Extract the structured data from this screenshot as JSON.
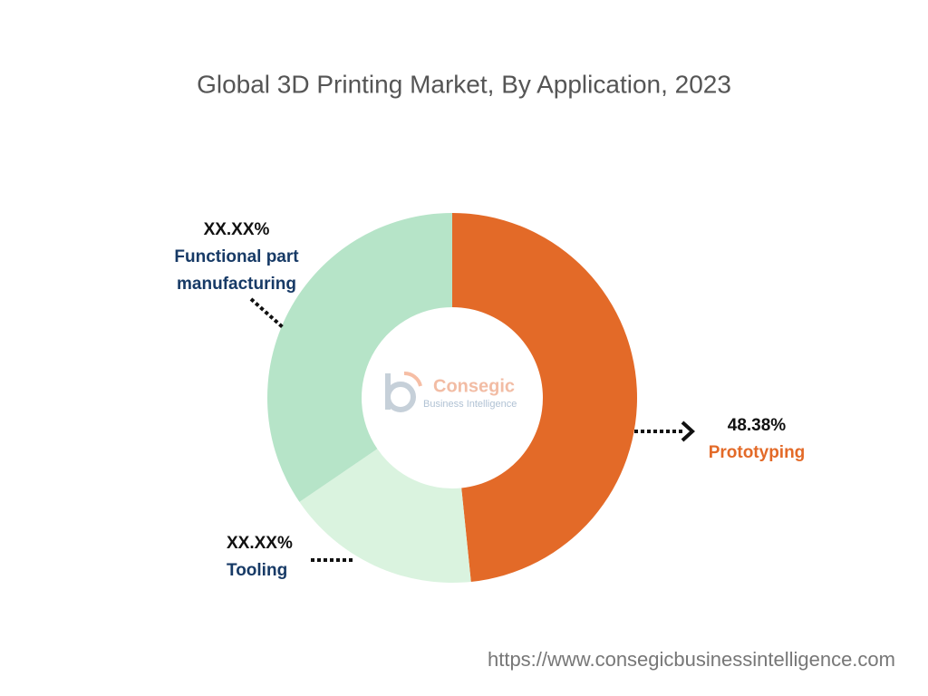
{
  "chart_data": {
    "type": "donut",
    "title": "Global 3D Printing Market, By Application, 2023",
    "categories": [
      "Prototyping",
      "Tooling",
      "Functional part manufacturing"
    ],
    "values": [
      48.38,
      17.1,
      34.52
    ],
    "value_labels": [
      "48.38%",
      "XX.XX%",
      "XX.XX%"
    ],
    "colors": [
      "#e36a28",
      "#daf3df",
      "#b6e4c8"
    ],
    "label_colors": [
      "#e36a28",
      "#173a66",
      "#173a66"
    ],
    "watermark": {
      "name": "Consegic",
      "subtitle": "Business Intelligence"
    },
    "source_url": "https://www.consegicbusinessintelligence.com"
  }
}
